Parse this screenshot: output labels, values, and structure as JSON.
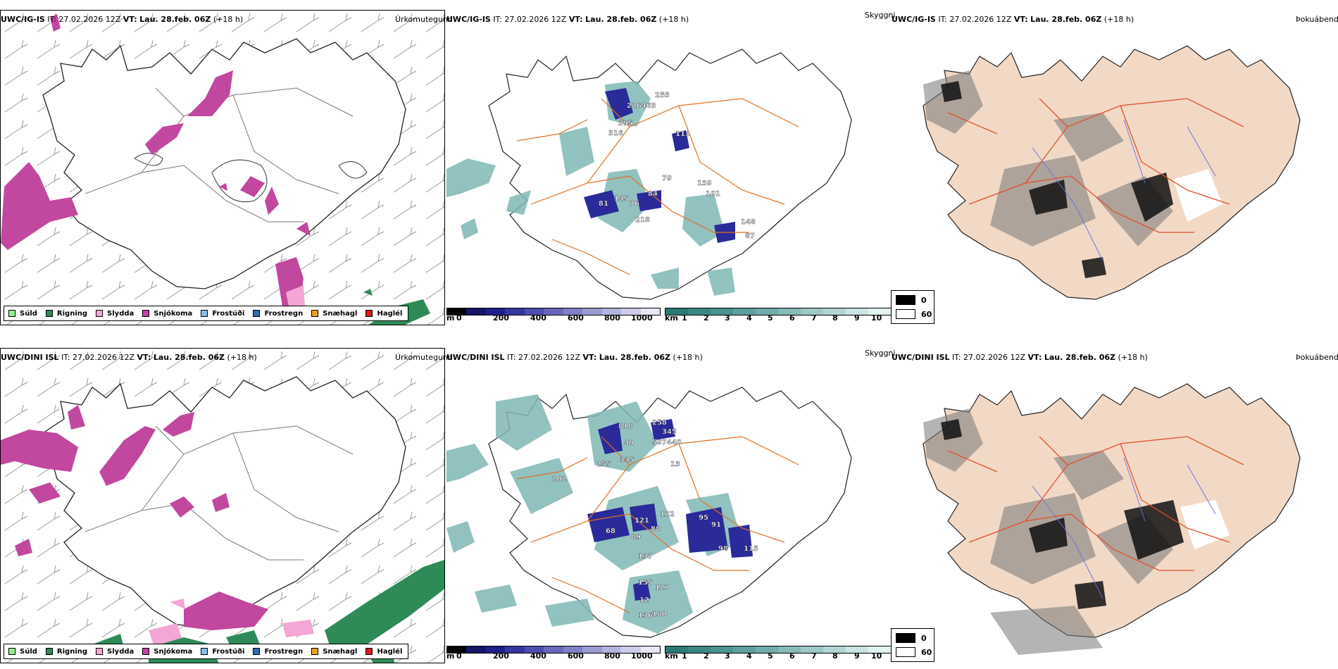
{
  "rows": [
    {
      "model": "UWC/IG-IS",
      "it_label": "IT:",
      "it_value": "27.02.2026 12Z",
      "vt_label": "VT:",
      "vt_value": "Lau. 28.feb. 06Z",
      "lead": "(+18 h)",
      "precip_title": "Úrkomutegund",
      "vis_title": "Skyggni",
      "fog_title": "Þokuábendi",
      "cloud_labels": [
        "255",
        "226463",
        "395",
        "316",
        "113",
        "79",
        "145",
        "84",
        "76",
        "81",
        "218",
        "101",
        "139",
        "148",
        "87"
      ]
    },
    {
      "model": "UWC/DINI ISL",
      "it_label": "IT:",
      "it_value": "27.02.2026 12Z",
      "vt_label": "VT:",
      "vt_value": "Lau. 28.feb. 06Z",
      "lead": "(+18 h)",
      "precip_title": "Úrkomutegund",
      "vis_title": "Skyggni",
      "fog_title": "Þokuábendi",
      "cloud_labels": [
        "818",
        "258",
        "345",
        "597440",
        "40",
        "335",
        "255",
        "13",
        "202",
        "122",
        "121",
        "88",
        "89",
        "68",
        "137",
        "91",
        "98",
        "115",
        "95",
        "155",
        "127",
        "180",
        "136",
        "12"
      ]
    }
  ],
  "precip_legend": [
    {
      "label": "Súld",
      "color": "#90ee90"
    },
    {
      "label": "Rigning",
      "color": "#2e8b57"
    },
    {
      "label": "Slydda",
      "color": "#f4a6d4"
    },
    {
      "label": "Snjókoma",
      "color": "#c2479f"
    },
    {
      "label": "Frostúði",
      "color": "#87bfeb"
    },
    {
      "label": "Frostregn",
      "color": "#2f6cb0"
    },
    {
      "label": "Snæhagl",
      "color": "#f0a020"
    },
    {
      "label": "Haglél",
      "color": "#e01818"
    }
  ],
  "ceiling_bar": {
    "unit": "m",
    "ticks": [
      "0",
      "200",
      "400",
      "600",
      "800",
      "1000"
    ],
    "colors": [
      "#000000",
      "#141466",
      "#1f1f8a",
      "#3535a0",
      "#4d4daf",
      "#6666bb",
      "#8080c7",
      "#9a9ad3",
      "#b3b3df",
      "#cdcdea",
      "#e6e6f5"
    ]
  },
  "vis_bar": {
    "unit": "km",
    "ticks": [
      "1",
      "2",
      "3",
      "4",
      "5",
      "6",
      "7",
      "8",
      "9",
      "10"
    ],
    "colors": [
      "#2c7a77",
      "#3a8784",
      "#4a9390",
      "#5c9f9c",
      "#70aca9",
      "#86bab7",
      "#9cc8c5",
      "#b3d6d4",
      "#cae4e2",
      "#e2f2f1"
    ]
  },
  "fog_legend": [
    {
      "label": "0",
      "color": "#000000"
    },
    {
      "label": "60",
      "color": "#ffffff"
    }
  ]
}
